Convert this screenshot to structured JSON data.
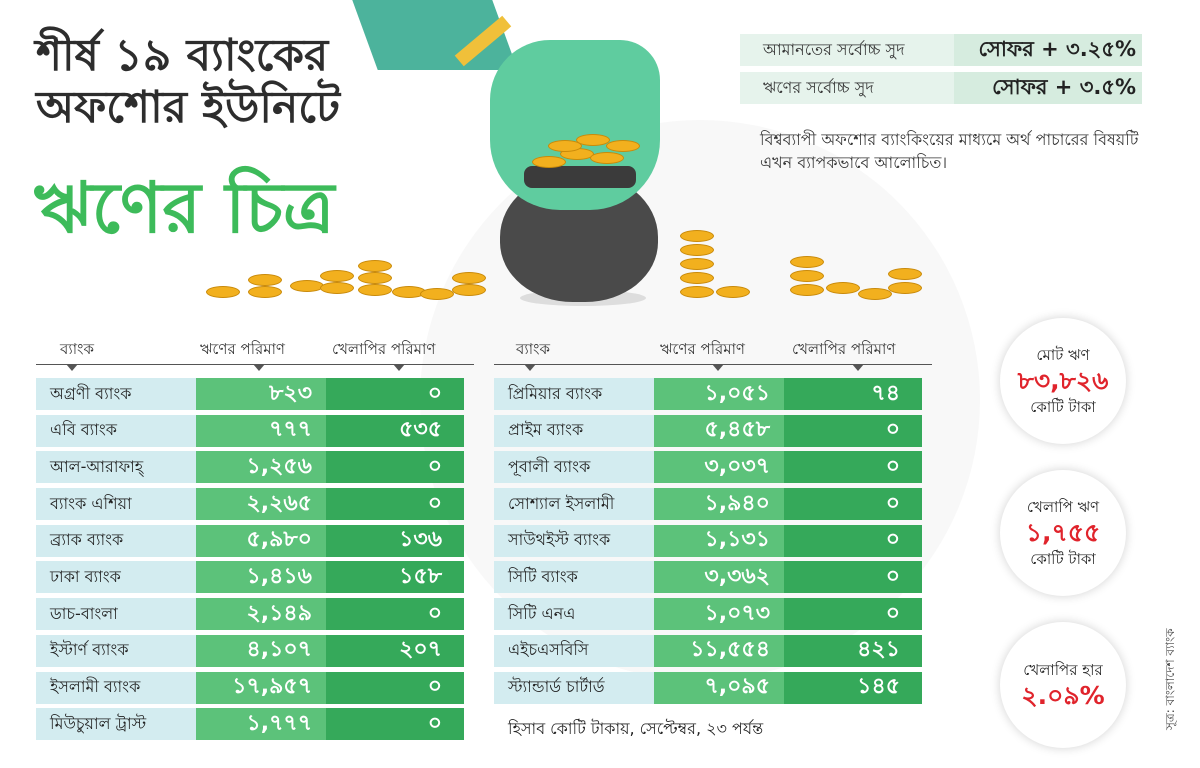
{
  "title": {
    "line1": "শীর্ষ ১৯ ব্যাংকের",
    "line2": "অফশোর ইউনিটে",
    "line3": "ঋণের চিত্র"
  },
  "rates": [
    {
      "label": "আমানতের সর্বোচ্চ সুদ",
      "value": "সোফর + ৩.২৫%"
    },
    {
      "label": "ঋণের সর্বোচ্চ সুদ",
      "value": "সোফর + ৩.৫%"
    }
  ],
  "note": "বিশ্বব্যাপী অফশোর ব্যাংকিংয়ের মাধ্যমে অর্থ পাচারের বিষয়টি এখন ব্যাপকভাবে আলোচিত।",
  "headers": {
    "bank": "ব্যাংক",
    "loan": "ঋণের পরিমাণ",
    "default": "খেলাপির পরিমাণ"
  },
  "table_left": [
    {
      "bank": "অগ্রণী ব্যাংক",
      "loan": "৮২৩",
      "default": "০"
    },
    {
      "bank": "এবি ব্যাংক",
      "loan": "৭৭৭",
      "default": "৫৩৫"
    },
    {
      "bank": "আল-আরাফাহ্",
      "loan": "১,২৫৬",
      "default": "০"
    },
    {
      "bank": "ব্যাংক এশিয়া",
      "loan": "২,২৬৫",
      "default": "০"
    },
    {
      "bank": "ব্র্যাক ব্যাংক",
      "loan": "৫,৯৮০",
      "default": "১৩৬"
    },
    {
      "bank": "ঢাকা ব্যাংক",
      "loan": "১,৪১৬",
      "default": "১৫৮"
    },
    {
      "bank": "ডাচ-বাংলা",
      "loan": "২,১৪৯",
      "default": "০"
    },
    {
      "bank": "ইস্টার্ণ ব্যাংক",
      "loan": "৪,১০৭",
      "default": "২০৭"
    },
    {
      "bank": "ইসলামী ব্যাংক",
      "loan": "১৭,৯৫৭",
      "default": "০"
    },
    {
      "bank": "মিউচুয়াল ট্রাস্ট",
      "loan": "১,৭৭৭",
      "default": "০"
    }
  ],
  "table_right": [
    {
      "bank": "প্রিমিয়ার ব্যাংক",
      "loan": "১,০৫১",
      "default": "৭৪"
    },
    {
      "bank": "প্রাইম ব্যাংক",
      "loan": "৫,৪৫৮",
      "default": "০"
    },
    {
      "bank": "পূবালী ব্যাংক",
      "loan": "৩,০৩৭",
      "default": "০"
    },
    {
      "bank": "সোশ্যাল ইসলামী",
      "loan": "১,৯৪০",
      "default": "০"
    },
    {
      "bank": "সাউথইস্ট ব্যাংক",
      "loan": "১,১৩১",
      "default": "০"
    },
    {
      "bank": "সিটি ব্যাংক",
      "loan": "৩,৩৬২",
      "default": "০"
    },
    {
      "bank": "সিটি এনএ",
      "loan": "১,০৭৩",
      "default": "০"
    },
    {
      "bank": "এইচএসবিসি",
      "loan": "১১,৫৫৪",
      "default": "৪২১"
    },
    {
      "bank": "স্ট্যান্ডার্ড চার্টার্ড",
      "loan": "৭,০৯৫",
      "default": "১৪৫"
    }
  ],
  "footnote": "হিসাব কোটি টাকায়, সেপ্টেম্বর, ২৩ পর্যন্ত",
  "stats": [
    {
      "label": "মোট ঋণ",
      "value": "৮৩,৮২৬",
      "unit": "কোটি টাকা"
    },
    {
      "label": "খেলাপি ঋণ",
      "value": "১,৭৫৫",
      "unit": "কোটি টাকা"
    },
    {
      "label": "খেলাপির হার",
      "value": "২.০৯%",
      "unit": ""
    }
  ],
  "source": "সূত্র: বাংলাদেশ ব্যাংক",
  "colors": {
    "title_accent": "#3dbb5a",
    "loan_cell": "#5cc27a",
    "default_cell": "#35a95a",
    "bank_cell": "#d3ecf0",
    "stat_value": "#e0242c"
  }
}
